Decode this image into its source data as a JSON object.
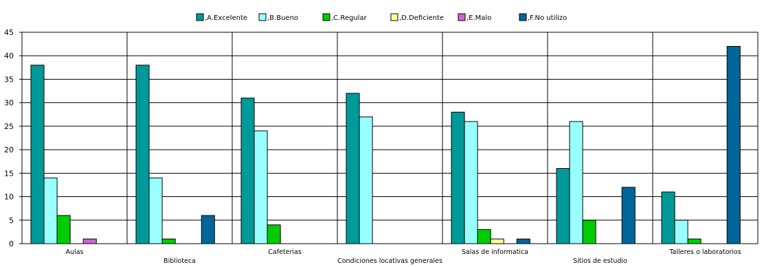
{
  "chart_data": {
    "type": "bar",
    "title": "",
    "xlabel": "",
    "ylabel": "",
    "ylim": [
      0,
      45
    ],
    "yticks": [
      0,
      5,
      10,
      15,
      20,
      25,
      30,
      35,
      40,
      45
    ],
    "grid": true,
    "legend_position": "top",
    "categories": [
      "Aulas",
      "Biblioteca",
      "Cafeterias",
      "Condiciones locativas generales",
      "Salas de informatica",
      "Sitios de estudio",
      "Talleres o laboratorios"
    ],
    "series": [
      {
        "name": ",A.Excelente",
        "color": "#009999",
        "values": [
          38,
          38,
          31,
          32,
          28,
          16,
          11
        ]
      },
      {
        "name": ",B.Bueno",
        "color": "#99ffff",
        "values": [
          14,
          14,
          24,
          27,
          26,
          26,
          5
        ]
      },
      {
        "name": ",C.Regular",
        "color": "#00cc00",
        "values": [
          6,
          1,
          4,
          0,
          3,
          5,
          1
        ]
      },
      {
        "name": ",D.Deficiente",
        "color": "#ffff99",
        "values": [
          0,
          0,
          0,
          0,
          1,
          0,
          0
        ]
      },
      {
        "name": ",E.Malo",
        "color": "#cc66cc",
        "values": [
          1,
          0,
          0,
          0,
          0,
          0,
          0
        ]
      },
      {
        "name": ",F.No utilizo",
        "color": "#006699",
        "values": [
          0,
          6,
          0,
          0,
          1,
          12,
          42
        ]
      }
    ]
  }
}
